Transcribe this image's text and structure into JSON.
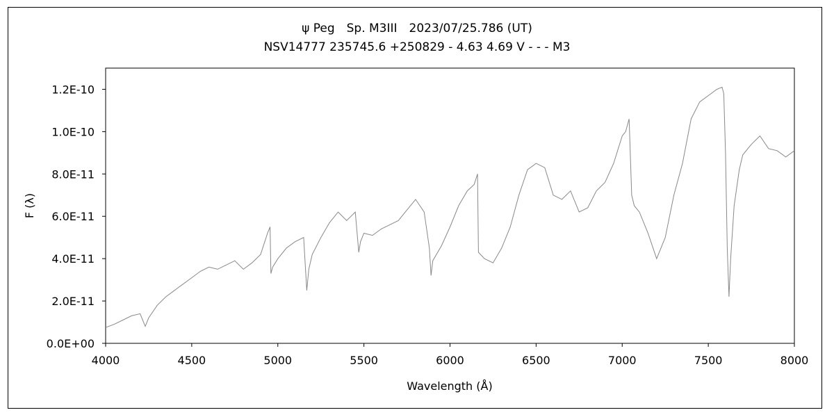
{
  "chart_data": {
    "type": "line",
    "title": "ψ Peg　Sp. M3III　2023/07/25.786 (UT)",
    "subtitle": "NSV14777 235745.6 +250829 - 4.63 4.69 V - - - M3",
    "xlabel": "Wavelength (Å)",
    "ylabel": "F (λ)",
    "xlim": [
      4000,
      8000
    ],
    "ylim": [
      0,
      1.3e-10
    ],
    "x_ticks": [
      4000,
      4500,
      5000,
      5500,
      6000,
      6500,
      7000,
      7500,
      8000
    ],
    "x_tick_labels": [
      "4000",
      "4500",
      "5000",
      "5500",
      "6000",
      "6500",
      "7000",
      "7500",
      "8000"
    ],
    "y_ticks": [
      0,
      2e-11,
      4e-11,
      6e-11,
      8e-11,
      1e-10,
      1.2e-10
    ],
    "y_tick_labels": [
      "0.0E+00",
      "2.0E-11",
      "4.0E-11",
      "6.0E-11",
      "8.0E-11",
      "1.0E-10",
      "1.2E-10"
    ],
    "grid": false,
    "line_color": "#888888",
    "series": [
      {
        "x": [
          4000,
          4050,
          4100,
          4150,
          4200,
          4230,
          4250,
          4300,
          4350,
          4400,
          4450,
          4500,
          4550,
          4600,
          4650,
          4700,
          4750,
          4800,
          4850,
          4900,
          4940,
          4955,
          4960,
          4970,
          5000,
          5050,
          5100,
          5150,
          5168,
          5180,
          5200,
          5250,
          5300,
          5350,
          5400,
          5450,
          5470,
          5480,
          5500,
          5550,
          5600,
          5650,
          5700,
          5750,
          5800,
          5850,
          5880,
          5890,
          5900,
          5950,
          6000,
          6050,
          6100,
          6140,
          6160,
          6165,
          6200,
          6250,
          6300,
          6350,
          6400,
          6450,
          6500,
          6550,
          6600,
          6650,
          6700,
          6750,
          6800,
          6850,
          6900,
          6950,
          7000,
          7020,
          7040,
          7055,
          7070,
          7100,
          7150,
          7200,
          7250,
          7300,
          7350,
          7400,
          7450,
          7500,
          7550,
          7580,
          7590,
          7600,
          7610,
          7620,
          7630,
          7650,
          7680,
          7700,
          7750,
          7800,
          7850,
          7900,
          7950,
          8000
        ],
        "values": [
          7.5e-12,
          9e-12,
          1.1e-11,
          1.3e-11,
          1.4e-11,
          8e-12,
          1.2e-11,
          1.8e-11,
          2.2e-11,
          2.5e-11,
          2.8e-11,
          3.1e-11,
          3.4e-11,
          3.6e-11,
          3.5e-11,
          3.7e-11,
          3.9e-11,
          3.5e-11,
          3.8e-11,
          4.2e-11,
          5.2e-11,
          5.5e-11,
          3.3e-11,
          3.6e-11,
          4e-11,
          4.5e-11,
          4.8e-11,
          5e-11,
          2.5e-11,
          3.5e-11,
          4.2e-11,
          5e-11,
          5.7e-11,
          6.2e-11,
          5.8e-11,
          6.2e-11,
          4.3e-11,
          4.8e-11,
          5.2e-11,
          5.1e-11,
          5.4e-11,
          5.6e-11,
          5.8e-11,
          6.3e-11,
          6.8e-11,
          6.2e-11,
          4.5e-11,
          3.2e-11,
          3.9e-11,
          4.6e-11,
          5.5e-11,
          6.5e-11,
          7.2e-11,
          7.5e-11,
          8e-11,
          4.3e-11,
          4e-11,
          3.8e-11,
          4.5e-11,
          5.5e-11,
          7e-11,
          8.2e-11,
          8.5e-11,
          8.3e-11,
          7e-11,
          6.8e-11,
          7.2e-11,
          6.2e-11,
          6.4e-11,
          7.2e-11,
          7.6e-11,
          8.5e-11,
          9.8e-11,
          1e-10,
          1.06e-10,
          7e-11,
          6.5e-11,
          6.2e-11,
          5.2e-11,
          4e-11,
          5e-11,
          7e-11,
          8.5e-11,
          1.06e-10,
          1.14e-10,
          1.17e-10,
          1.2e-10,
          1.21e-10,
          1.18e-10,
          9e-11,
          4.5e-11,
          2.2e-11,
          4e-11,
          6.5e-11,
          8.2e-11,
          8.9e-11,
          9.4e-11,
          9.8e-11,
          9.2e-11,
          9.1e-11,
          8.8e-11,
          9.1e-11
        ]
      }
    ]
  }
}
